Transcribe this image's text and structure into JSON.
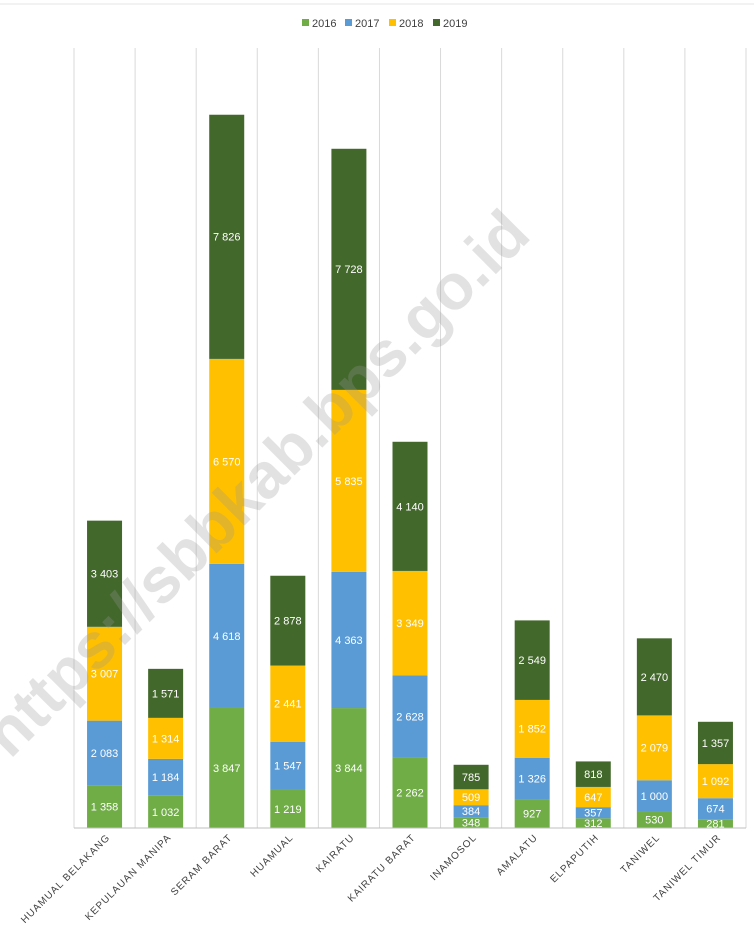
{
  "watermark": "https://sbbkab.bps.go.id",
  "colors": {
    "2016": "#70ad47",
    "2017": "#5b9bd5",
    "2018": "#ffc000",
    "2019": "#43682b",
    "grid": "#d9d9d9",
    "axis": "#bfbfbf"
  },
  "chart_data": {
    "type": "bar",
    "stacked": true,
    "legend_position": "top",
    "grid": true,
    "categories": [
      "HUAMUAL BELAKANG",
      "KEPULAUAN MANIPA",
      "SERAM BARAT",
      "HUAMUAL",
      "KAIRATU",
      "KAIRATU BARAT",
      "INAMOSOL",
      "AMALATU",
      "ELPAPUTIH",
      "TANIWEL",
      "TANIWEL TIMUR"
    ],
    "series": [
      {
        "name": "2016",
        "values": [
          1358,
          1032,
          3847,
          1219,
          3844,
          2262,
          348,
          927,
          312,
          530,
          281
        ],
        "labels": [
          "1 358",
          "1 032",
          "3 847",
          "1 219",
          "3 844",
          "2 262",
          "348",
          "927",
          "312",
          "530",
          "281"
        ]
      },
      {
        "name": "2017",
        "values": [
          2083,
          1184,
          4618,
          1547,
          4363,
          2628,
          384,
          1326,
          357,
          1000,
          674
        ],
        "labels": [
          "2 083",
          "1 184",
          "4 618",
          "1 547",
          "4 363",
          "2 628",
          "384",
          "1 326",
          "357",
          "1 000",
          "674"
        ]
      },
      {
        "name": "2018",
        "values": [
          3007,
          1314,
          6570,
          2441,
          5835,
          3349,
          509,
          1852,
          647,
          2079,
          1092
        ],
        "labels": [
          "3 007",
          "1 314",
          "6 570",
          "2 441",
          "5 835",
          "3 349",
          "509",
          "1 852",
          "647",
          "2 079",
          "1 092"
        ]
      },
      {
        "name": "2019",
        "values": [
          3403,
          1571,
          7826,
          2878,
          7728,
          4140,
          785,
          2549,
          818,
          2470,
          1357
        ],
        "labels": [
          "3 403",
          "1 571",
          "7 826",
          "2 878",
          "7 728",
          "4 140",
          "785",
          "2 549",
          "818",
          "2 470",
          "1 357"
        ]
      }
    ],
    "ylim": [
      0,
      25000
    ]
  }
}
